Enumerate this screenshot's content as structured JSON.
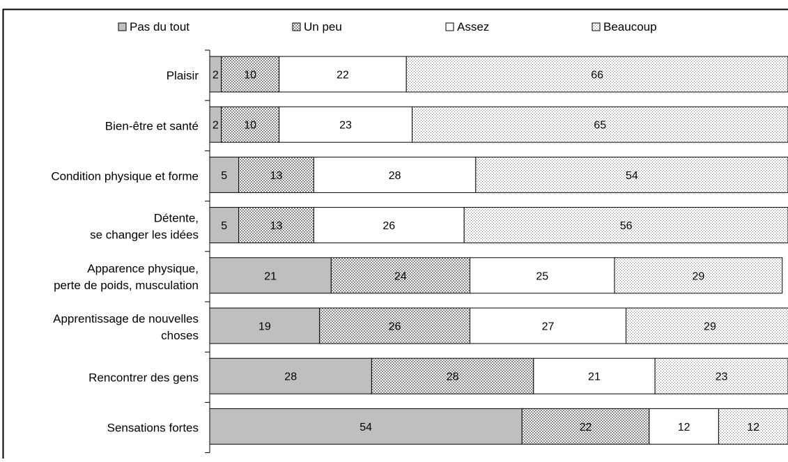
{
  "chart_data": {
    "type": "bar",
    "orientation": "horizontal",
    "stacked": true,
    "percent_stacked": true,
    "title": "",
    "xlabel": "",
    "ylabel": "",
    "xlim": [
      0,
      100
    ],
    "grid": false,
    "legend": "top",
    "categories": [
      [
        "Plaisir"
      ],
      [
        "Bien-être et santé"
      ],
      [
        "Condition physique et forme"
      ],
      [
        "Détente,",
        "se changer les idées"
      ],
      [
        "Apparence physique,",
        "perte de poids, musculation"
      ],
      [
        "Apprentissage de nouvelles",
        "choses"
      ],
      [
        "Rencontrer des gens"
      ],
      [
        "Sensations fortes"
      ]
    ],
    "series": [
      {
        "name": "Pas du tout",
        "color": "#bfbfbf",
        "pattern": "solid",
        "values": [
          2,
          2,
          5,
          5,
          21,
          19,
          28,
          54
        ]
      },
      {
        "name": "Un peu",
        "color": "#c8c8c8",
        "pattern": "checker",
        "values": [
          10,
          10,
          13,
          13,
          24,
          26,
          28,
          22
        ]
      },
      {
        "name": "Assez",
        "color": "#ffffff",
        "pattern": "blank",
        "values": [
          22,
          23,
          28,
          26,
          25,
          27,
          21,
          12
        ]
      },
      {
        "name": "Beaucoup",
        "color": "#e8e8e8",
        "pattern": "dots",
        "values": [
          66,
          65,
          54,
          56,
          29,
          29,
          23,
          12
        ]
      }
    ]
  }
}
